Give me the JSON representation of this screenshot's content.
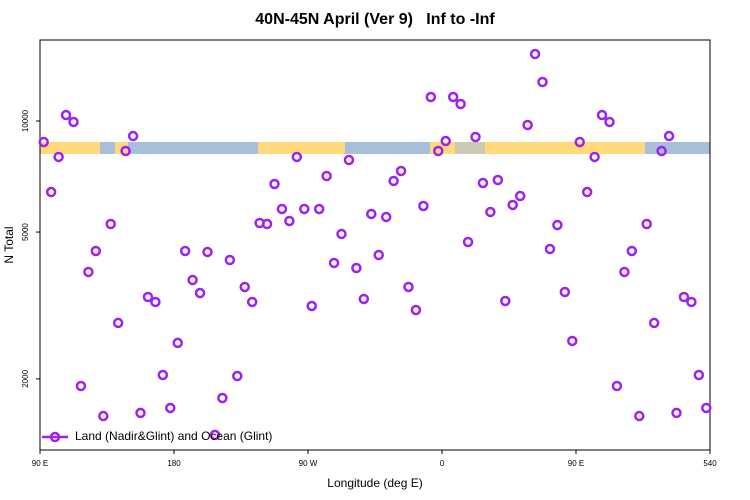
{
  "chart_data": {
    "type": "scatter",
    "title": "40N-45N April (Ver 9)   Inf to -Inf",
    "x_label": "Longitude (deg E)",
    "y_label": "N Total",
    "log_y": true,
    "legend": "bottom-left",
    "xlim": [
      90,
      540
    ],
    "ylim": [
      1283,
      16580
    ],
    "xticks": [
      {
        "value": 90,
        "label": "90 E"
      },
      180,
      {
        "value": 270,
        "label": "90 W"
      },
      {
        "value": 360,
        "label": "0"
      },
      {
        "value": 450,
        "label": "90 E"
      },
      540
    ],
    "yticks": [
      2000,
      5000,
      10000
    ],
    "series": [
      {
        "name": "Land (Nadir&Glint) and Ocean (Glint)",
        "color": "#a020f0",
        "x": [
          92.5,
          97.5,
          102.5,
          107.5,
          112.5,
          117.5,
          122.5,
          127.5,
          132.5,
          137.5,
          142.5,
          147.5,
          152.5,
          157.5,
          162.5,
          167.5,
          172.5,
          177.5,
          182.5,
          187.5,
          192.5,
          197.5,
          202.5,
          207.5,
          212.5,
          217.5,
          222.5,
          227.5,
          232.5,
          237.5,
          242.5,
          247.5,
          252.5,
          257.5,
          262.5,
          267.5,
          272.5,
          277.5,
          282.5,
          287.5,
          292.5,
          297.5,
          302.5,
          307.5,
          312.5,
          317.5,
          322.5,
          327.5,
          332.5,
          337.5,
          342.5,
          347.5,
          352.5,
          357.5,
          362.5,
          367.5,
          372.5,
          377.5,
          382.5,
          387.5,
          392.5,
          397.5,
          402.5,
          407.5,
          412.5,
          417.5,
          422.5,
          427.5,
          432.5,
          437.5,
          442.5,
          447.5,
          452.5,
          457.5,
          462.5,
          467.5,
          472.5,
          477.5,
          482.5,
          487.5,
          492.5,
          497.5,
          502.5,
          507.5,
          512.5,
          517.5,
          522.5,
          527.5,
          532.5,
          537.5
        ],
        "values": [
          8770,
          6420,
          7990,
          10380,
          9940,
          1913,
          3898,
          4443,
          1586,
          5258,
          2836,
          8293,
          9105,
          1617,
          3334,
          3232,
          2049,
          1668,
          2503,
          4443,
          3707,
          3418,
          4416,
          1410,
          1775,
          4200,
          2036,
          3549,
          3232,
          5291,
          5258,
          6750,
          5775,
          5358,
          7990,
          5775,
          3152,
          5775,
          7095,
          4123,
          4941,
          7840,
          3996,
          3293,
          5598,
          4333,
          5494,
          6878,
          7320,
          3549,
          3074,
          5884,
          11616,
          8293,
          8826,
          11616,
          11120,
          4700,
          9050,
          6792,
          5668,
          6920,
          3252,
          5922,
          6262,
          9754,
          15190,
          12757,
          4498,
          5225,
          3440,
          2534,
          8770,
          6420,
          7990,
          10380,
          9940,
          1913,
          3898,
          4443,
          1586,
          5258,
          2836,
          8293,
          9105,
          1617,
          3334,
          3232,
          2049,
          1668
        ]
      }
    ]
  }
}
